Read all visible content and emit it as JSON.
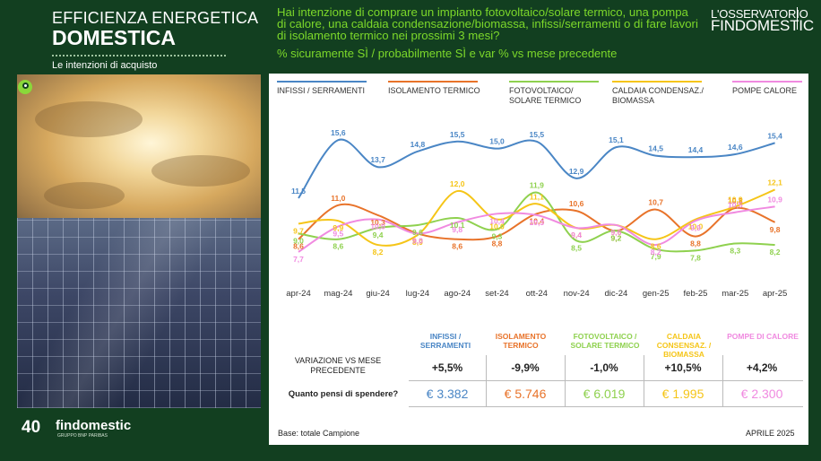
{
  "header": {
    "title_line1": "EFFICIENZA ENERGETICA",
    "title_line2": "DOMESTICA",
    "subtitle": "Le intenzioni di acquisto",
    "question": "Hai intenzione di comprare un impianto fotovoltaico/solare termico, una pompa di calore, una caldaia condensazione/biomassa, infissi/serramenti o di fare lavori di isolamento termico nei prossimi 3 mesi?",
    "question_sub": "% sicuramente SÌ / probabilmente SÌ e var % vs mese precedente",
    "brand_line1": "L'OSSERVATORIO",
    "brand_line2": "FINDOMESTIC"
  },
  "logos": {
    "anniversary": "40",
    "company": "findomestic",
    "company_sub": "GRUPPO BNP PARIBAS"
  },
  "chart_data": {
    "type": "line",
    "x": [
      "apr-24",
      "mag-24",
      "giu-24",
      "lug-24",
      "ago-24",
      "set-24",
      "ott-24",
      "nov-24",
      "dic-24",
      "gen-25",
      "feb-25",
      "mar-25",
      "apr-25"
    ],
    "series": [
      {
        "name": "INFISSI / SERRAMENTI",
        "color": "#4a86c5",
        "values": [
          11.5,
          15.6,
          13.7,
          14.8,
          15.5,
          15.0,
          15.5,
          12.9,
          15.1,
          14.5,
          14.4,
          14.6,
          15.4
        ]
      },
      {
        "name": "ISOLAMENTO TERMICO",
        "color": "#e8732a",
        "values": [
          8.6,
          11.0,
          10.3,
          9.0,
          8.6,
          8.8,
          10.4,
          10.6,
          9.2,
          10.7,
          8.8,
          10.8,
          9.8
        ]
      },
      {
        "name": "FOTOVOLTAICO/ SOLARE TERMICO",
        "color": "#8fd14f",
        "values": [
          9.0,
          8.6,
          9.4,
          9.6,
          10.1,
          9.3,
          11.9,
          8.5,
          9.2,
          7.9,
          7.8,
          8.3,
          8.2
        ]
      },
      {
        "name": "CALDAIA CONDENSAZ./ BIOMASSA",
        "color": "#f5c518",
        "values": [
          9.7,
          9.9,
          8.2,
          8.9,
          12.0,
          10.0,
          11.1,
          9.4,
          9.6,
          8.6,
          10.0,
          10.9,
          12.1
        ]
      },
      {
        "name": "POMPE CALORE",
        "color": "#f08ae0",
        "values": [
          7.7,
          9.5,
          10.0,
          9.0,
          9.8,
          10.4,
          10.3,
          9.4,
          9.6,
          8.2,
          9.9,
          10.5,
          10.9
        ]
      }
    ],
    "labels": [
      [
        "11,5",
        "15,6",
        "13,7",
        "14,8",
        "15,5",
        "15,0",
        "15,5",
        "12,9",
        "15,1",
        "14,5",
        "14,4",
        "14,6",
        "15,4"
      ],
      [
        "8,6",
        "11,0",
        "10,3",
        "9,0",
        "8,6",
        "8,8",
        "10,4",
        "10,6",
        "9,2",
        "10,7",
        "8,8",
        "10,8",
        "9,8"
      ],
      [
        "9,0",
        "8,6",
        "9,4",
        "9,6",
        "10,1",
        "9,3",
        "11,9",
        "8,5",
        "9,2",
        "7,9",
        "7,8",
        "8,3",
        "8,2"
      ],
      [
        "9,7",
        "9,9",
        "8,2",
        "8,9",
        "12,0",
        "10,0",
        "11,1",
        "9,4",
        "9,6",
        "8,6",
        "10,0",
        "10,9",
        "12,1"
      ],
      [
        "7,7",
        "9,5",
        "10,0",
        "9,0",
        "9,8",
        "10,4",
        "10,3",
        "9,4",
        "9,6",
        "8,2",
        "9,9",
        "10,5",
        "10,9"
      ]
    ],
    "ylim": [
      7,
      16.5
    ],
    "grid": false,
    "legend": "top"
  },
  "table": {
    "headers": [
      "INFISSI / SERRAMENTI",
      "ISOLAMENTO TERMICO",
      "FOTOVOLTAICO / SOLARE TERMICO",
      "CALDAIA CONSENSAZ. / BIOMASSA",
      "POMPE DI CALORE"
    ],
    "row1_label": "VARIAZIONE VS MESE PRECEDENTE",
    "row2_label": "Quanto pensi di spendere?",
    "variation": [
      "+5,5%",
      "-9,9%",
      "-1,0%",
      "+10,5%",
      "+4,2%"
    ],
    "spend": [
      "€ 3.382",
      "€ 5.746",
      "€ 6.019",
      "€ 1.995",
      "€ 2.300"
    ]
  },
  "footer": {
    "base": "Base: totale Campione",
    "date": "APRILE 2025"
  }
}
